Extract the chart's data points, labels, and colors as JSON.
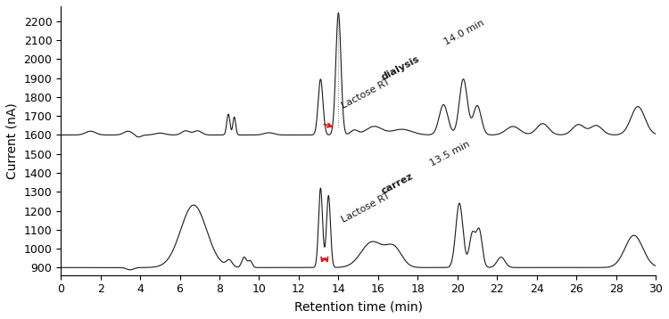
{
  "title": "",
  "xlabel": "Retention time (min)",
  "ylabel": "Current (nA)",
  "xlim": [
    0,
    30
  ],
  "ylim": [
    860,
    2280
  ],
  "top_baseline": 1600,
  "bottom_baseline": 900,
  "xticks": [
    0,
    2,
    4,
    6,
    8,
    10,
    12,
    14,
    16,
    18,
    20,
    22,
    24,
    26,
    28,
    30
  ],
  "yticks": [
    900,
    1000,
    1100,
    1200,
    1300,
    1400,
    1500,
    1600,
    1700,
    1800,
    1900,
    2000,
    2100,
    2200
  ],
  "line_color": "#1a1a1a",
  "arrow_color": "red",
  "dpi": 100,
  "figsize": [
    7.5,
    3.58
  ],
  "annotation_rotation": 28
}
